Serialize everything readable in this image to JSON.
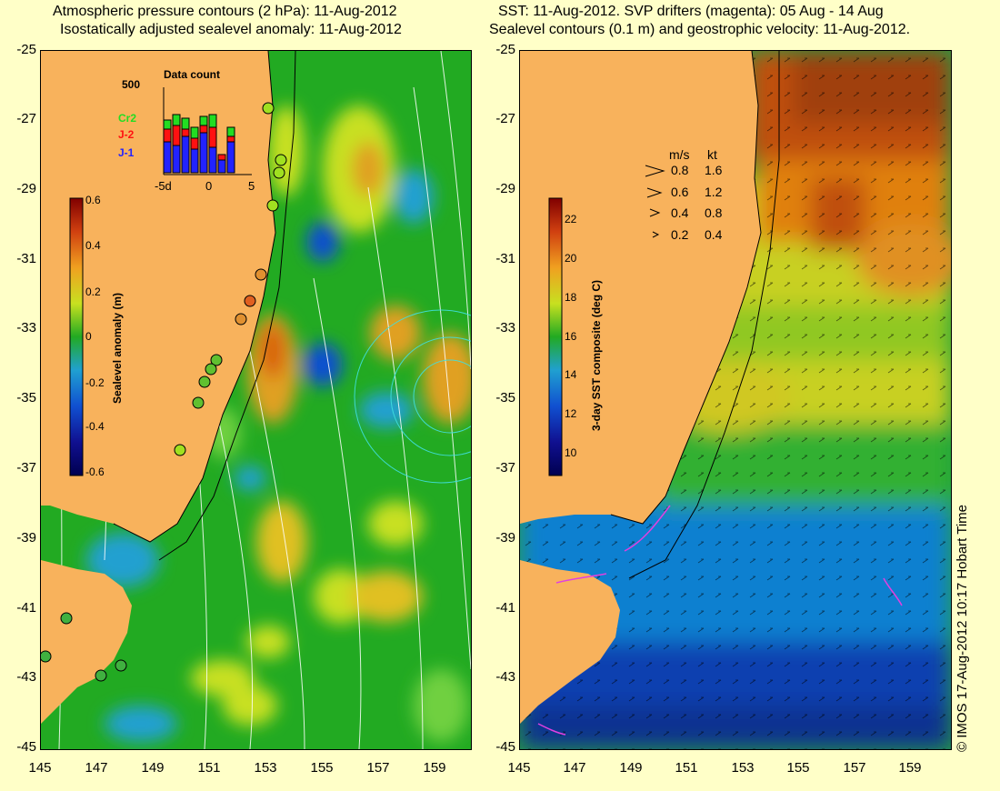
{
  "left_title_1": "Atmospheric pressure contours (2 hPa): 11-Aug-2012",
  "left_title_2": "Isostatically adjusted sealevel anomaly: 11-Aug-2012",
  "right_title_1": "SST: 11-Aug-2012. SVP drifters (magenta): 05 Aug - 14 Aug",
  "right_title_2": "Sealevel contours (0.1 m) and geostrophic velocity: 11-Aug-2012.",
  "y_ticks": [
    "-25",
    "-27",
    "-29",
    "-31",
    "-33",
    "-35",
    "-37",
    "-39",
    "-41",
    "-43",
    "-45"
  ],
  "x_ticks": [
    "145",
    "147",
    "149",
    "151",
    "153",
    "155",
    "157",
    "159"
  ],
  "sla_colorbar": {
    "label": "Sealevel anomaly (m)",
    "ticks": [
      "0.6",
      "0.4",
      "0.2",
      "0",
      "-0.2",
      "-0.4",
      "-0.6"
    ]
  },
  "sst_colorbar": {
    "label": "3-day SST composite (deg C)",
    "ticks": [
      "22",
      "20",
      "18",
      "16",
      "14",
      "12",
      "10"
    ]
  },
  "data_count": {
    "title": "Data count",
    "max_label": "500",
    "x_labels": [
      "-5d",
      "0",
      "5"
    ],
    "series": [
      {
        "name": "Cr2",
        "color": "#22dd22"
      },
      {
        "name": "J-2",
        "color": "#ff1111"
      },
      {
        "name": "J-1",
        "color": "#2222ff"
      }
    ]
  },
  "velocity_legend": {
    "header_ms": "m/s",
    "header_kt": "kt",
    "rows": [
      {
        "ms": "0.8",
        "kt": "1.6"
      },
      {
        "ms": "0.6",
        "kt": "1.2"
      },
      {
        "ms": "0.4",
        "kt": "0.8"
      },
      {
        "ms": "0.2",
        "kt": "0.4"
      }
    ]
  },
  "credit": "© IMOS 17-Aug-2012 10:17 Hobart Time",
  "colors": {
    "land": "#f8b25c",
    "background": "#ffffc8",
    "drifter": "#e040e0"
  }
}
